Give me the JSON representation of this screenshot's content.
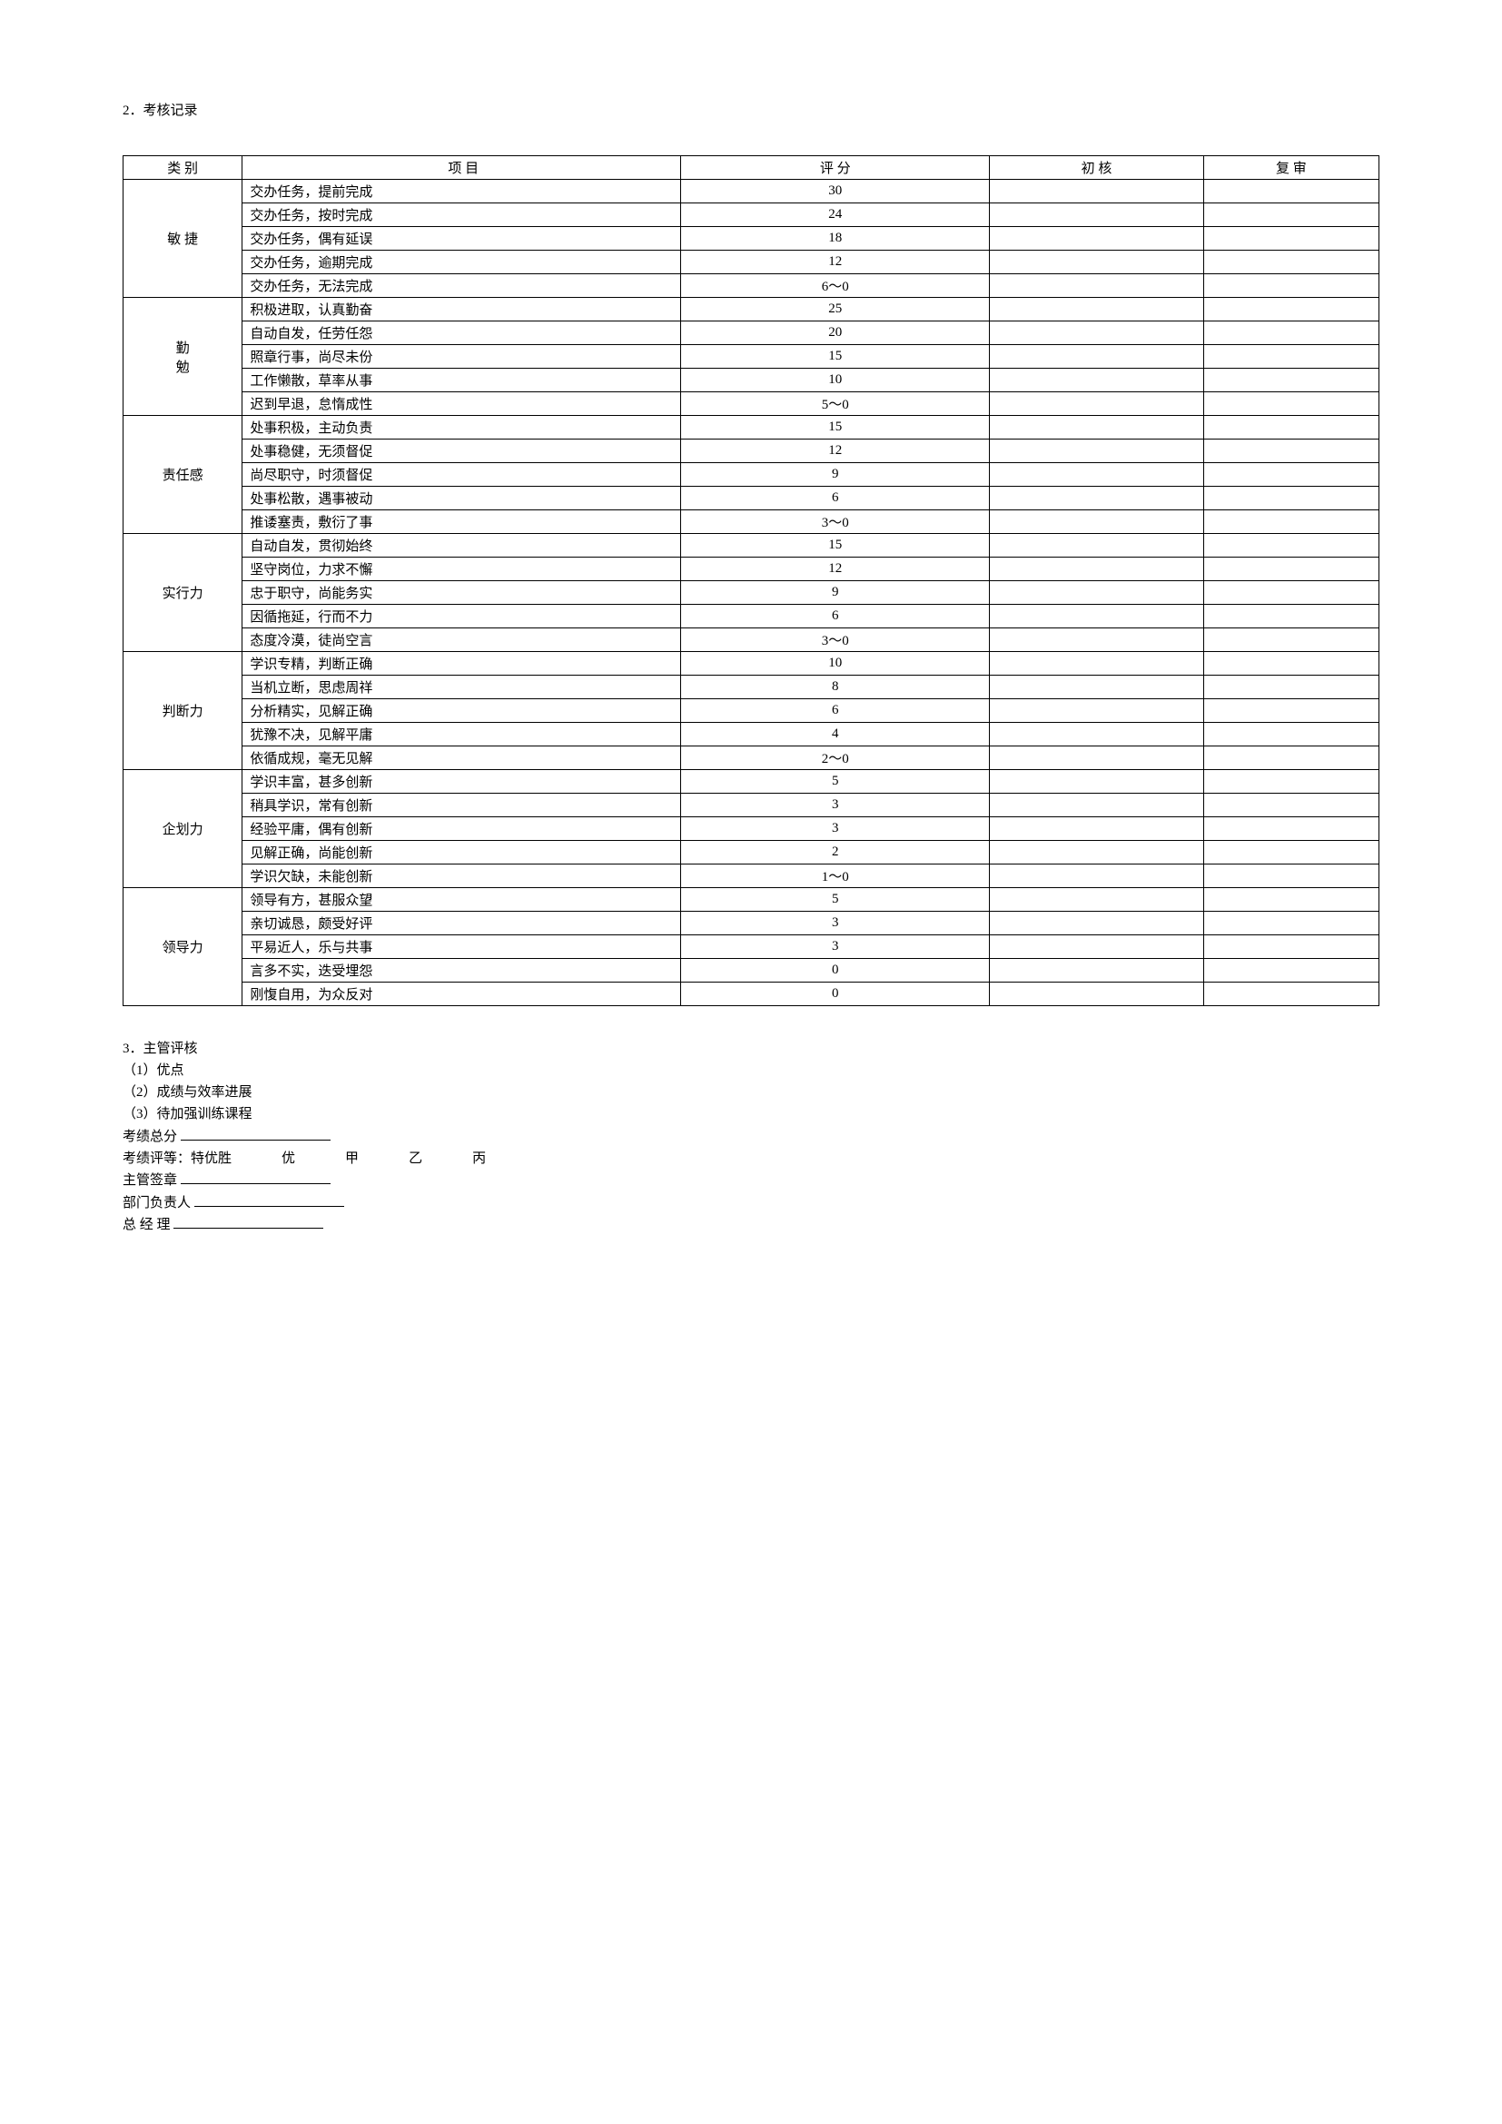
{
  "title": "2．考核记录",
  "headers": {
    "category": "类  别",
    "item": "项         目",
    "score": "评      分",
    "first": "初    核",
    "review": "复    审"
  },
  "sections": [
    {
      "name": "敏 捷",
      "rows": [
        {
          "item": "交办任务，提前完成",
          "score": "30"
        },
        {
          "item": "交办任务，按时完成",
          "score": "24"
        },
        {
          "item": "交办任务，偶有延误",
          "score": "18"
        },
        {
          "item": "交办任务，逾期完成",
          "score": "12"
        },
        {
          "item": "交办任务，无法完成",
          "score": "6～0"
        }
      ]
    },
    {
      "name": "勤\n勉",
      "rows": [
        {
          "item": "积极进取，认真勤奋",
          "score": "25"
        },
        {
          "item": "自动自发，任劳任怨",
          "score": "20"
        },
        {
          "item": "照章行事，尚尽未份",
          "score": "15"
        },
        {
          "item": "工作懒散，草率从事",
          "score": "10"
        },
        {
          "item": "迟到早退，怠惰成性",
          "score": "5～0"
        }
      ]
    },
    {
      "name": "责任感",
      "rows": [
        {
          "item": "处事积极，主动负责",
          "score": "15"
        },
        {
          "item": "处事稳健，无须督促",
          "score": "12"
        },
        {
          "item": "尚尽职守，时须督促",
          "score": "9"
        },
        {
          "item": "处事松散，遇事被动",
          "score": "6"
        },
        {
          "item": "推诿塞责，敷衍了事",
          "score": "3～0"
        }
      ]
    },
    {
      "name": "实行力",
      "rows": [
        {
          "item": "自动自发，贯彻始终",
          "score": "15"
        },
        {
          "item": "坚守岗位，力求不懈",
          "score": "12"
        },
        {
          "item": "忠于职守，尚能务实",
          "score": "9"
        },
        {
          "item": "因循拖延，行而不力",
          "score": "6"
        },
        {
          "item": "态度冷漠，徒尚空言",
          "score": "3～0"
        }
      ]
    },
    {
      "name": "判断力",
      "rows": [
        {
          "item": "学识专精，判断正确",
          "score": "10"
        },
        {
          "item": "当机立断，思虑周祥",
          "score": "8"
        },
        {
          "item": "分析精实，见解正确",
          "score": "6"
        },
        {
          "item": "犹豫不决，见解平庸",
          "score": "4"
        },
        {
          "item": "依循成规，毫无见解",
          "score": "2～0"
        }
      ]
    },
    {
      "name": "企划力",
      "rows": [
        {
          "item": "学识丰富，甚多创新",
          "score": "5"
        },
        {
          "item": "稍具学识，常有创新",
          "score": "3"
        },
        {
          "item": "经验平庸，偶有创新",
          "score": "3"
        },
        {
          "item": "见解正确，尚能创新",
          "score": "2"
        },
        {
          "item": "学识欠缺，未能创新",
          "score": "1～0"
        }
      ]
    },
    {
      "name": "领导力",
      "rows": [
        {
          "item": "领导有方，甚服众望",
          "score": "5"
        },
        {
          "item": "亲切诚恳，颇受好评",
          "score": "3"
        },
        {
          "item": "平易近人，乐与共事",
          "score": "3"
        },
        {
          "item": "言多不实，迭受埋怨",
          "score": "0"
        },
        {
          "item": "刚愎自用，为众反对",
          "score": "0"
        }
      ]
    }
  ],
  "footer": {
    "h": "3．主管评核",
    "l1": "（1）优点",
    "l2": "（2）成绩与效率进展",
    "l3": "（3）待加强训练课程",
    "total_label": "考绩总分",
    "grade_label": "考绩评等：",
    "grades": [
      "特优胜",
      "优",
      "甲",
      "乙",
      "丙"
    ],
    "sign_super": "主管签章",
    "sign_dept": "部门负责人",
    "sign_gm": "总  经  理"
  }
}
